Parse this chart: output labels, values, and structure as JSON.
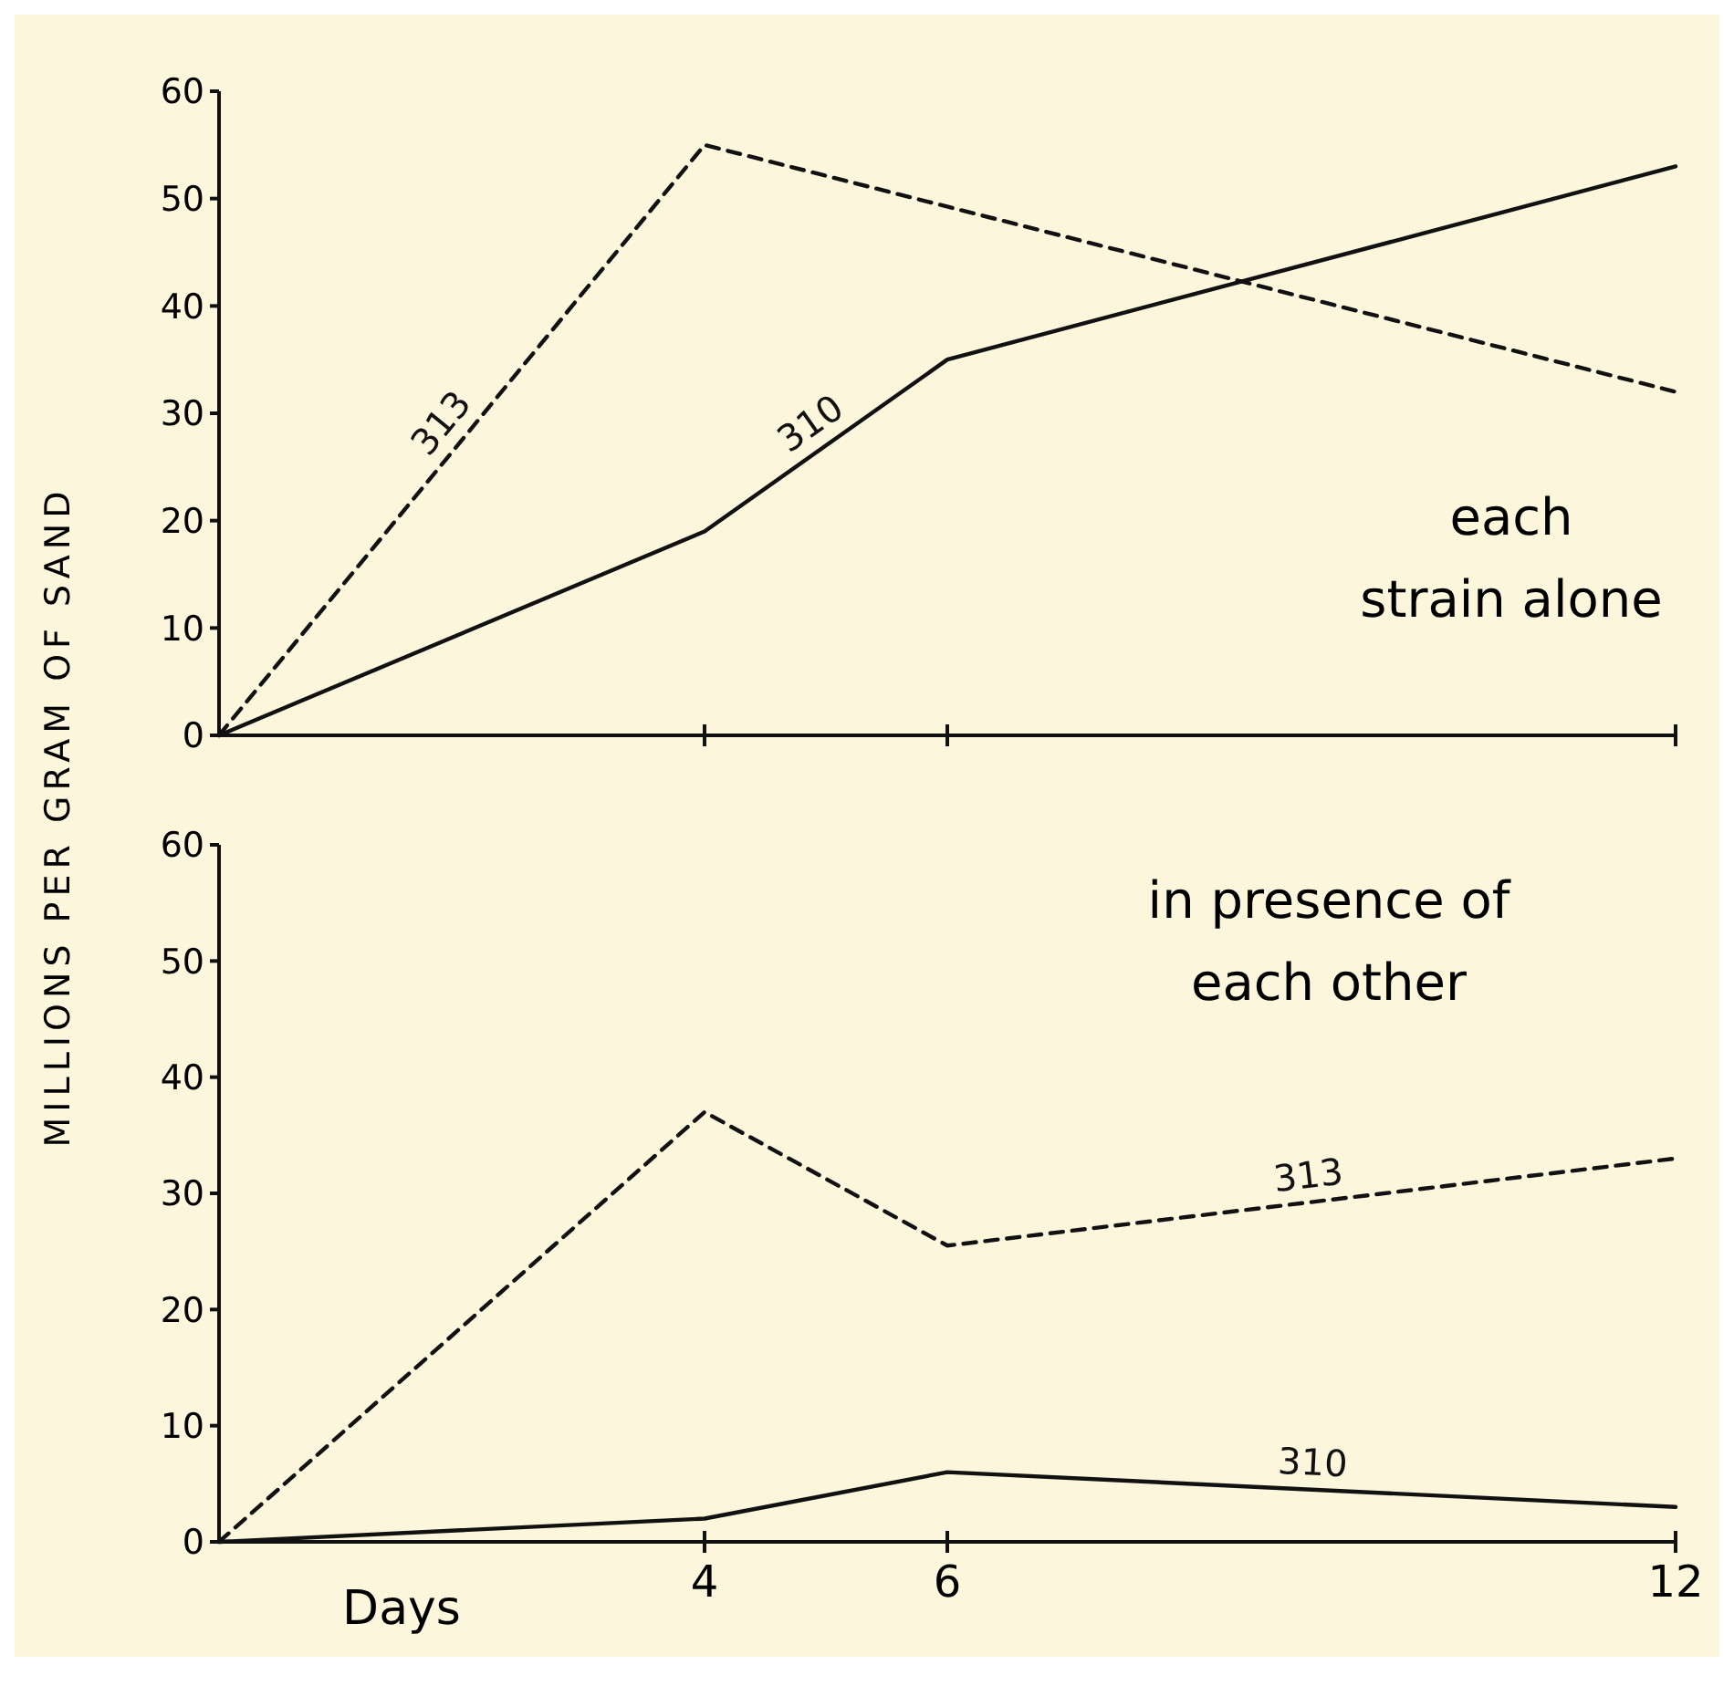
{
  "chart_data": [
    {
      "type": "line",
      "ylabel": "MILLIONS PER GRAM OF SAND",
      "xlim": [
        0,
        12
      ],
      "xticks": [
        {
          "value": 4,
          "label": null
        },
        {
          "value": 6,
          "label": null
        },
        {
          "value": 12,
          "label": null
        }
      ],
      "ylim": [
        0,
        60
      ],
      "yticks": [
        0,
        10,
        20,
        30,
        40,
        50,
        60
      ],
      "tick_labels": "y",
      "annotations": [
        "each strain alone"
      ],
      "x": [
        0,
        4,
        6,
        12
      ],
      "series": [
        {
          "name": "313",
          "color": "#111111",
          "line_style": "dashed",
          "x": [
            0,
            4,
            12
          ],
          "values": [
            0,
            55,
            32
          ]
        },
        {
          "name": "310",
          "color": "#111111",
          "line_style": "solid",
          "values": [
            0,
            19,
            35,
            53
          ]
        }
      ]
    },
    {
      "type": "line",
      "xlabel": "Days",
      "xlim": [
        0,
        12
      ],
      "xticks": [
        4,
        6,
        12
      ],
      "ylim": [
        0,
        60
      ],
      "yticks": [
        0,
        10,
        20,
        30,
        40,
        50,
        60
      ],
      "annotations": [
        "in presence of each other"
      ],
      "x": [
        0,
        4,
        6,
        12
      ],
      "series": [
        {
          "name": "313",
          "color": "#111111",
          "line_style": "dashed",
          "values": [
            0,
            37,
            25.5,
            33
          ]
        },
        {
          "name": "310",
          "color": "#111111",
          "line_style": "solid",
          "values": [
            0,
            2,
            6,
            3
          ]
        }
      ]
    }
  ]
}
